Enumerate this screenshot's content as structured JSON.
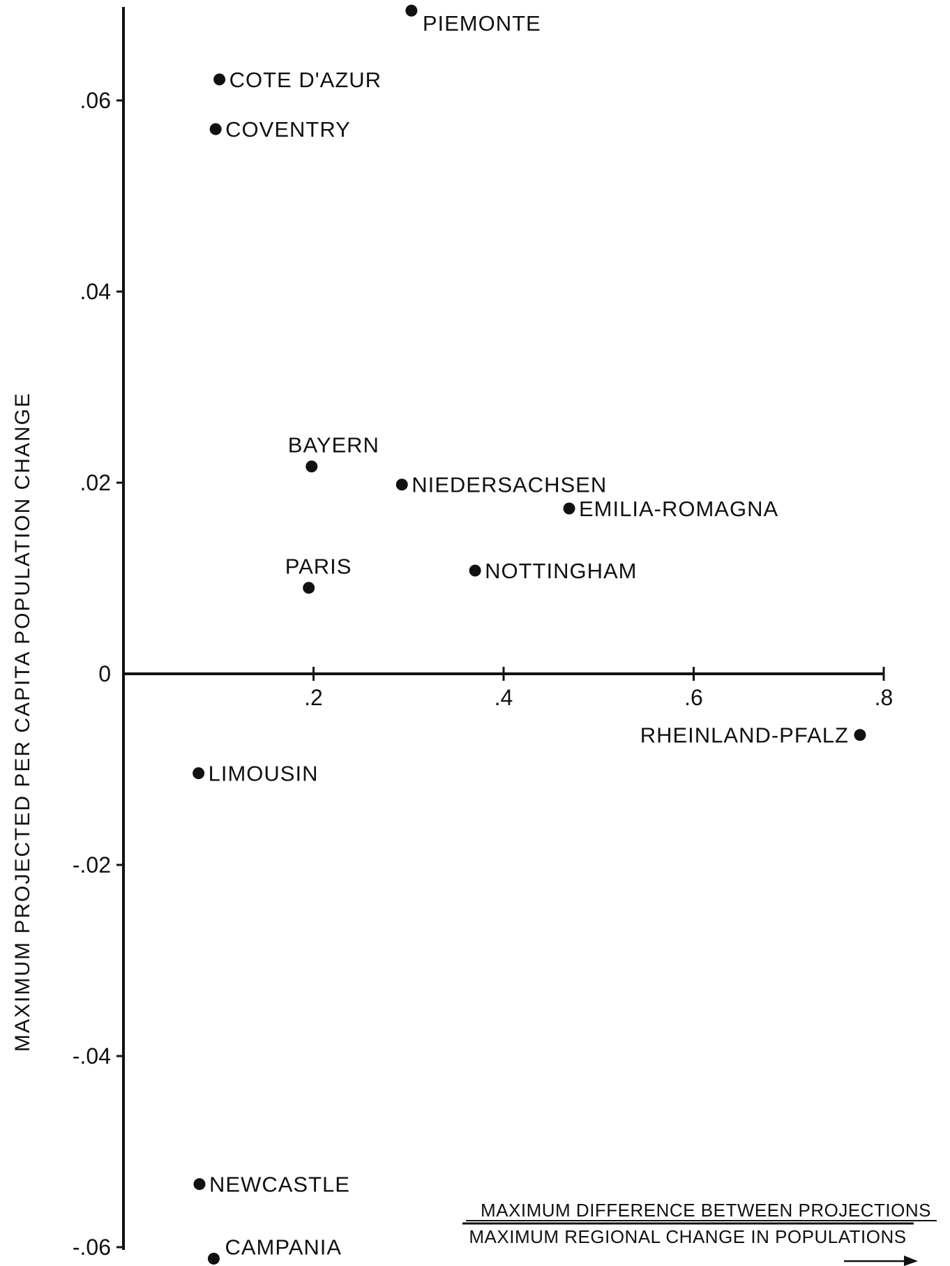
{
  "chart_data": {
    "type": "scatter",
    "title": "",
    "xlabel": "",
    "ylabel": "MAXIMUM PROJECTED PER CAPITA POPULATION CHANGE",
    "xlabel_ratio": {
      "numerator": "MAXIMUM DIFFERENCE BETWEEN PROJECTIONS",
      "denominator": "MAXIMUM REGIONAL CHANGE IN POPULATIONS"
    },
    "xlim": [
      0,
      0.8
    ],
    "ylim": [
      -0.06,
      0.07
    ],
    "x_ticks": [
      {
        "value": 0.2,
        "label": ".2"
      },
      {
        "value": 0.4,
        "label": ".4"
      },
      {
        "value": 0.6,
        "label": ".6"
      },
      {
        "value": 0.8,
        "label": ".8"
      }
    ],
    "y_ticks": [
      {
        "value": 0.06,
        "label": ".06"
      },
      {
        "value": 0.04,
        "label": ".04"
      },
      {
        "value": 0.02,
        "label": ".02"
      },
      {
        "value": 0,
        "label": "0"
      },
      {
        "value": -0.02,
        "label": "-.02"
      },
      {
        "value": -0.04,
        "label": "-.04"
      },
      {
        "value": -0.06,
        "label": "-.06"
      }
    ],
    "grid": false,
    "legend": "none",
    "points": [
      {
        "label": "PIEMONTE",
        "x": 0.303,
        "y": 0.0694,
        "label_pos": "right-below"
      },
      {
        "label": "COTE D'AZUR",
        "x": 0.101,
        "y": 0.0622,
        "label_pos": "right"
      },
      {
        "label": "COVENTRY",
        "x": 0.097,
        "y": 0.057,
        "label_pos": "right"
      },
      {
        "label": "BAYERN",
        "x": 0.198,
        "y": 0.0217,
        "label_pos": "above"
      },
      {
        "label": "NIEDERSACHSEN",
        "x": 0.293,
        "y": 0.0198,
        "label_pos": "right"
      },
      {
        "label": "EMILIA-ROMAGNA",
        "x": 0.469,
        "y": 0.0173,
        "label_pos": "right"
      },
      {
        "label": "PARIS",
        "x": 0.195,
        "y": 0.009,
        "label_pos": "above"
      },
      {
        "label": "NOTTINGHAM",
        "x": 0.37,
        "y": 0.0108,
        "label_pos": "right"
      },
      {
        "label": "RHEINLAND-PFALZ",
        "x": 0.775,
        "y": -0.0064,
        "label_pos": "left"
      },
      {
        "label": "LIMOUSIN",
        "x": 0.079,
        "y": -0.0104,
        "label_pos": "right"
      },
      {
        "label": "NEWCASTLE",
        "x": 0.08,
        "y": -0.0534,
        "label_pos": "right"
      },
      {
        "label": "CAMPANIA",
        "x": 0.095,
        "y": -0.0612,
        "label_pos": "right-above"
      }
    ],
    "colors": {
      "ink": "#111111",
      "background": "#ffffff"
    }
  }
}
